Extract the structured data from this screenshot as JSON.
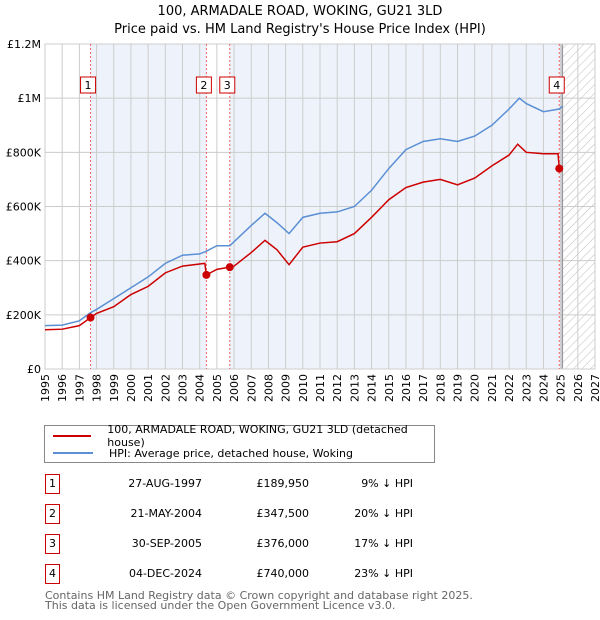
{
  "title_line1": "100, ARMADALE ROAD, WOKING, GU21 3LD",
  "title_line2": "Price paid vs. HM Land Registry's House Price Index (HPI)",
  "colors": {
    "property": "#cc0000",
    "hpi": "#5b8fd4",
    "shade": "#eef3fb",
    "grid": "#cccccc"
  },
  "legend": {
    "property": "100, ARMADALE ROAD, WOKING, GU21 3LD (detached house)",
    "hpi": "HPI: Average price, detached house, Woking"
  },
  "sales": [
    {
      "num": "1",
      "date": "27-AUG-1997",
      "price": "£189,950",
      "hpi": "9% ↓ HPI"
    },
    {
      "num": "2",
      "date": "21-MAY-2004",
      "price": "£347,500",
      "hpi": "20% ↓ HPI"
    },
    {
      "num": "3",
      "date": "30-SEP-2005",
      "price": "£376,000",
      "hpi": "17% ↓ HPI"
    },
    {
      "num": "4",
      "date": "04-DEC-2024",
      "price": "£740,000",
      "hpi": "23% ↓ HPI"
    }
  ],
  "footer": {
    "line1": "Contains HM Land Registry data © Crown copyright and database right 2025.",
    "line2": "This data is licensed under the Open Government Licence v3.0."
  },
  "chart_data": {
    "type": "line",
    "xlim": [
      1995,
      2027
    ],
    "ylim": [
      0,
      1200000
    ],
    "yticks": [
      {
        "v": 0,
        "label": "£0"
      },
      {
        "v": 200000,
        "label": "£200K"
      },
      {
        "v": 400000,
        "label": "£400K"
      },
      {
        "v": 600000,
        "label": "£600K"
      },
      {
        "v": 800000,
        "label": "£800K"
      },
      {
        "v": 1000000,
        "label": "£1M"
      },
      {
        "v": 1200000,
        "label": "£1.2M"
      }
    ],
    "xticks": [
      "1995",
      "1996",
      "1997",
      "1998",
      "1999",
      "2000",
      "2001",
      "2002",
      "2003",
      "2004",
      "2005",
      "2006",
      "2007",
      "2008",
      "2009",
      "2010",
      "2011",
      "2012",
      "2013",
      "2014",
      "2015",
      "2016",
      "2017",
      "2018",
      "2019",
      "2020",
      "2021",
      "2022",
      "2023",
      "2024",
      "2025",
      "2026",
      "2027"
    ],
    "forecast_start": 2025.1,
    "sale_points": [
      {
        "label": "1",
        "x": 1997.65,
        "y": 189950
      },
      {
        "label": "2",
        "x": 2004.39,
        "y": 347500
      },
      {
        "label": "3",
        "x": 2005.75,
        "y": 376000
      },
      {
        "label": "4",
        "x": 2024.92,
        "y": 740000
      }
    ],
    "series": [
      {
        "name": "100, ARMADALE ROAD, WOKING, GU21 3LD (detached house)",
        "color": "#cc0000",
        "points": [
          [
            1995,
            145000
          ],
          [
            1996,
            147000
          ],
          [
            1997,
            160000
          ],
          [
            1997.65,
            189950
          ],
          [
            1998,
            205000
          ],
          [
            1999,
            230000
          ],
          [
            2000,
            275000
          ],
          [
            2001,
            305000
          ],
          [
            2002,
            355000
          ],
          [
            2003,
            380000
          ],
          [
            2004.3,
            390000
          ],
          [
            2004.39,
            347500
          ],
          [
            2005,
            368000
          ],
          [
            2005.75,
            376000
          ],
          [
            2006,
            380000
          ],
          [
            2007,
            430000
          ],
          [
            2007.8,
            475000
          ],
          [
            2008.5,
            440000
          ],
          [
            2009.2,
            385000
          ],
          [
            2010,
            450000
          ],
          [
            2011,
            465000
          ],
          [
            2012,
            470000
          ],
          [
            2013,
            500000
          ],
          [
            2014,
            560000
          ],
          [
            2015,
            625000
          ],
          [
            2016,
            670000
          ],
          [
            2017,
            690000
          ],
          [
            2018,
            700000
          ],
          [
            2019,
            680000
          ],
          [
            2020,
            705000
          ],
          [
            2021,
            750000
          ],
          [
            2022,
            790000
          ],
          [
            2022.5,
            830000
          ],
          [
            2023,
            800000
          ],
          [
            2024,
            795000
          ],
          [
            2024.85,
            795000
          ],
          [
            2024.92,
            740000
          ]
        ]
      },
      {
        "name": "HPI: Average price, detached house, Woking",
        "color": "#5b8fd4",
        "points": [
          [
            1995,
            160000
          ],
          [
            1996,
            162000
          ],
          [
            1997,
            178000
          ],
          [
            1997.65,
            208000
          ],
          [
            1998,
            220000
          ],
          [
            1999,
            260000
          ],
          [
            2000,
            300000
          ],
          [
            2001,
            340000
          ],
          [
            2002,
            390000
          ],
          [
            2003,
            420000
          ],
          [
            2004,
            425000
          ],
          [
            2004.39,
            435000
          ],
          [
            2005,
            455000
          ],
          [
            2005.75,
            455000
          ],
          [
            2006,
            470000
          ],
          [
            2007,
            530000
          ],
          [
            2007.8,
            575000
          ],
          [
            2008.5,
            540000
          ],
          [
            2009.2,
            500000
          ],
          [
            2010,
            560000
          ],
          [
            2011,
            575000
          ],
          [
            2012,
            580000
          ],
          [
            2013,
            600000
          ],
          [
            2014,
            660000
          ],
          [
            2015,
            740000
          ],
          [
            2016,
            810000
          ],
          [
            2017,
            840000
          ],
          [
            2018,
            850000
          ],
          [
            2019,
            840000
          ],
          [
            2020,
            860000
          ],
          [
            2021,
            900000
          ],
          [
            2022,
            960000
          ],
          [
            2022.6,
            1000000
          ],
          [
            2023,
            980000
          ],
          [
            2024,
            950000
          ],
          [
            2024.92,
            960000
          ],
          [
            2025.1,
            970000
          ]
        ]
      }
    ]
  }
}
